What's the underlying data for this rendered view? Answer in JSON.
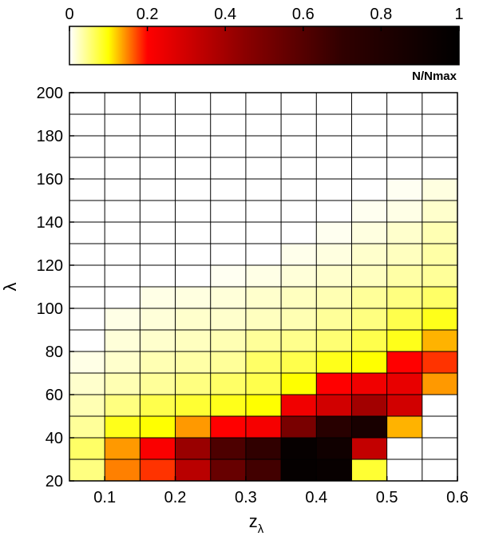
{
  "chart_data": {
    "type": "heatmap",
    "title": "",
    "xlabel_main": "z",
    "xlabel_sub": "λ",
    "ylabel": "λ",
    "colorbar_label": "N/Nmax",
    "colormap": "inverted hot (white-yellow-red-black)",
    "xlim": [
      0.05,
      0.6
    ],
    "ylim": [
      20,
      200
    ],
    "x_ticks": [
      "0.1",
      "0.2",
      "0.3",
      "0.4",
      "0.5",
      "0.6"
    ],
    "y_ticks": [
      "20",
      "40",
      "60",
      "80",
      "100",
      "120",
      "140",
      "160",
      "180",
      "200"
    ],
    "colorbar_ticks": [
      "0",
      "0.2",
      "0.4",
      "0.6",
      "0.8",
      "1"
    ],
    "x_bin_edges": [
      0.05,
      0.1,
      0.15,
      0.2,
      0.25,
      0.3,
      0.35,
      0.4,
      0.45,
      0.5,
      0.55,
      0.6
    ],
    "y_bin_edges": [
      20,
      30,
      40,
      50,
      60,
      70,
      80,
      90,
      100,
      110,
      120,
      130,
      140,
      150,
      160,
      170,
      180,
      190,
      200
    ],
    "values": [
      [
        0.05,
        0.15,
        0.18,
        0.35,
        0.55,
        0.65,
        0.97,
        0.95,
        0.08,
        0.0,
        0.0
      ],
      [
        0.06,
        0.14,
        0.21,
        0.42,
        0.62,
        0.7,
        0.96,
        0.9,
        0.33,
        0.0,
        0.0
      ],
      [
        0.04,
        0.09,
        0.1,
        0.14,
        0.2,
        0.22,
        0.5,
        0.75,
        0.85,
        0.13,
        0.0
      ],
      [
        0.03,
        0.05,
        0.07,
        0.08,
        0.09,
        0.1,
        0.23,
        0.3,
        0.4,
        0.3,
        0.0
      ],
      [
        0.02,
        0.03,
        0.04,
        0.05,
        0.06,
        0.07,
        0.1,
        0.2,
        0.23,
        0.25,
        0.14
      ],
      [
        0.01,
        0.02,
        0.03,
        0.035,
        0.04,
        0.06,
        0.07,
        0.09,
        0.1,
        0.2,
        0.18
      ],
      [
        0.0,
        0.015,
        0.02,
        0.025,
        0.03,
        0.04,
        0.045,
        0.055,
        0.07,
        0.09,
        0.13
      ],
      [
        0.0,
        0.01,
        0.015,
        0.02,
        0.02,
        0.025,
        0.03,
        0.04,
        0.05,
        0.07,
        0.09
      ],
      [
        0.0,
        0.0,
        0.01,
        0.012,
        0.015,
        0.02,
        0.025,
        0.03,
        0.04,
        0.05,
        0.06
      ],
      [
        0.0,
        0.0,
        0.0,
        0.0,
        0.005,
        0.01,
        0.015,
        0.02,
        0.025,
        0.035,
        0.04
      ],
      [
        0.0,
        0.0,
        0.0,
        0.0,
        0.0,
        0.0,
        0.008,
        0.012,
        0.02,
        0.025,
        0.035
      ],
      [
        0.0,
        0.0,
        0.0,
        0.0,
        0.0,
        0.0,
        0.0,
        0.006,
        0.012,
        0.02,
        0.03
      ],
      [
        0.0,
        0.0,
        0.0,
        0.0,
        0.0,
        0.0,
        0.0,
        0.0,
        0.006,
        0.01,
        0.02
      ],
      [
        0.0,
        0.0,
        0.0,
        0.0,
        0.0,
        0.0,
        0.0,
        0.0,
        0.0,
        0.005,
        0.012
      ],
      [
        0.0,
        0.0,
        0.0,
        0.0,
        0.0,
        0.0,
        0.0,
        0.0,
        0.0,
        0.0,
        0.0
      ],
      [
        0.0,
        0.0,
        0.0,
        0.0,
        0.0,
        0.0,
        0.0,
        0.0,
        0.0,
        0.0,
        0.0
      ],
      [
        0.0,
        0.0,
        0.0,
        0.0,
        0.0,
        0.0,
        0.0,
        0.0,
        0.0,
        0.0,
        0.0
      ],
      [
        0.0,
        0.0,
        0.0,
        0.0,
        0.0,
        0.0,
        0.0,
        0.0,
        0.0,
        0.0,
        0.0
      ]
    ],
    "grid": true
  }
}
